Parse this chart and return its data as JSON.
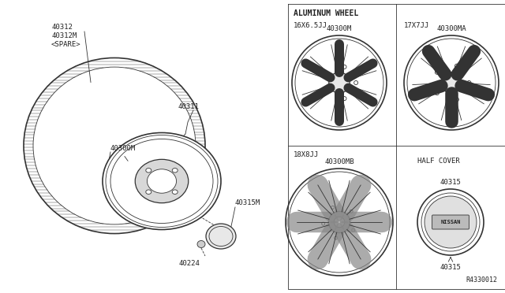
{
  "bg_color": "#f0f0f0",
  "line_color": "#333333",
  "text_color": "#222222",
  "title": "ALUMINUM WHEEL",
  "ref_number": "R4330012",
  "part_numbers": {
    "tire": "40312\n40312M\n<SPARE>",
    "wheel": "40300M",
    "valve": "40311",
    "nut": "40224",
    "cap_label": "40315M",
    "wheel_16": "40300M",
    "wheel_17": "40300MA",
    "wheel_18": "40300MB",
    "center_cap": "40315"
  },
  "labels": {
    "16x65": "16X6.5JJ",
    "17x7": "17X7JJ",
    "18x8": "18X8JJ",
    "half_cover": "HALF COVER"
  }
}
